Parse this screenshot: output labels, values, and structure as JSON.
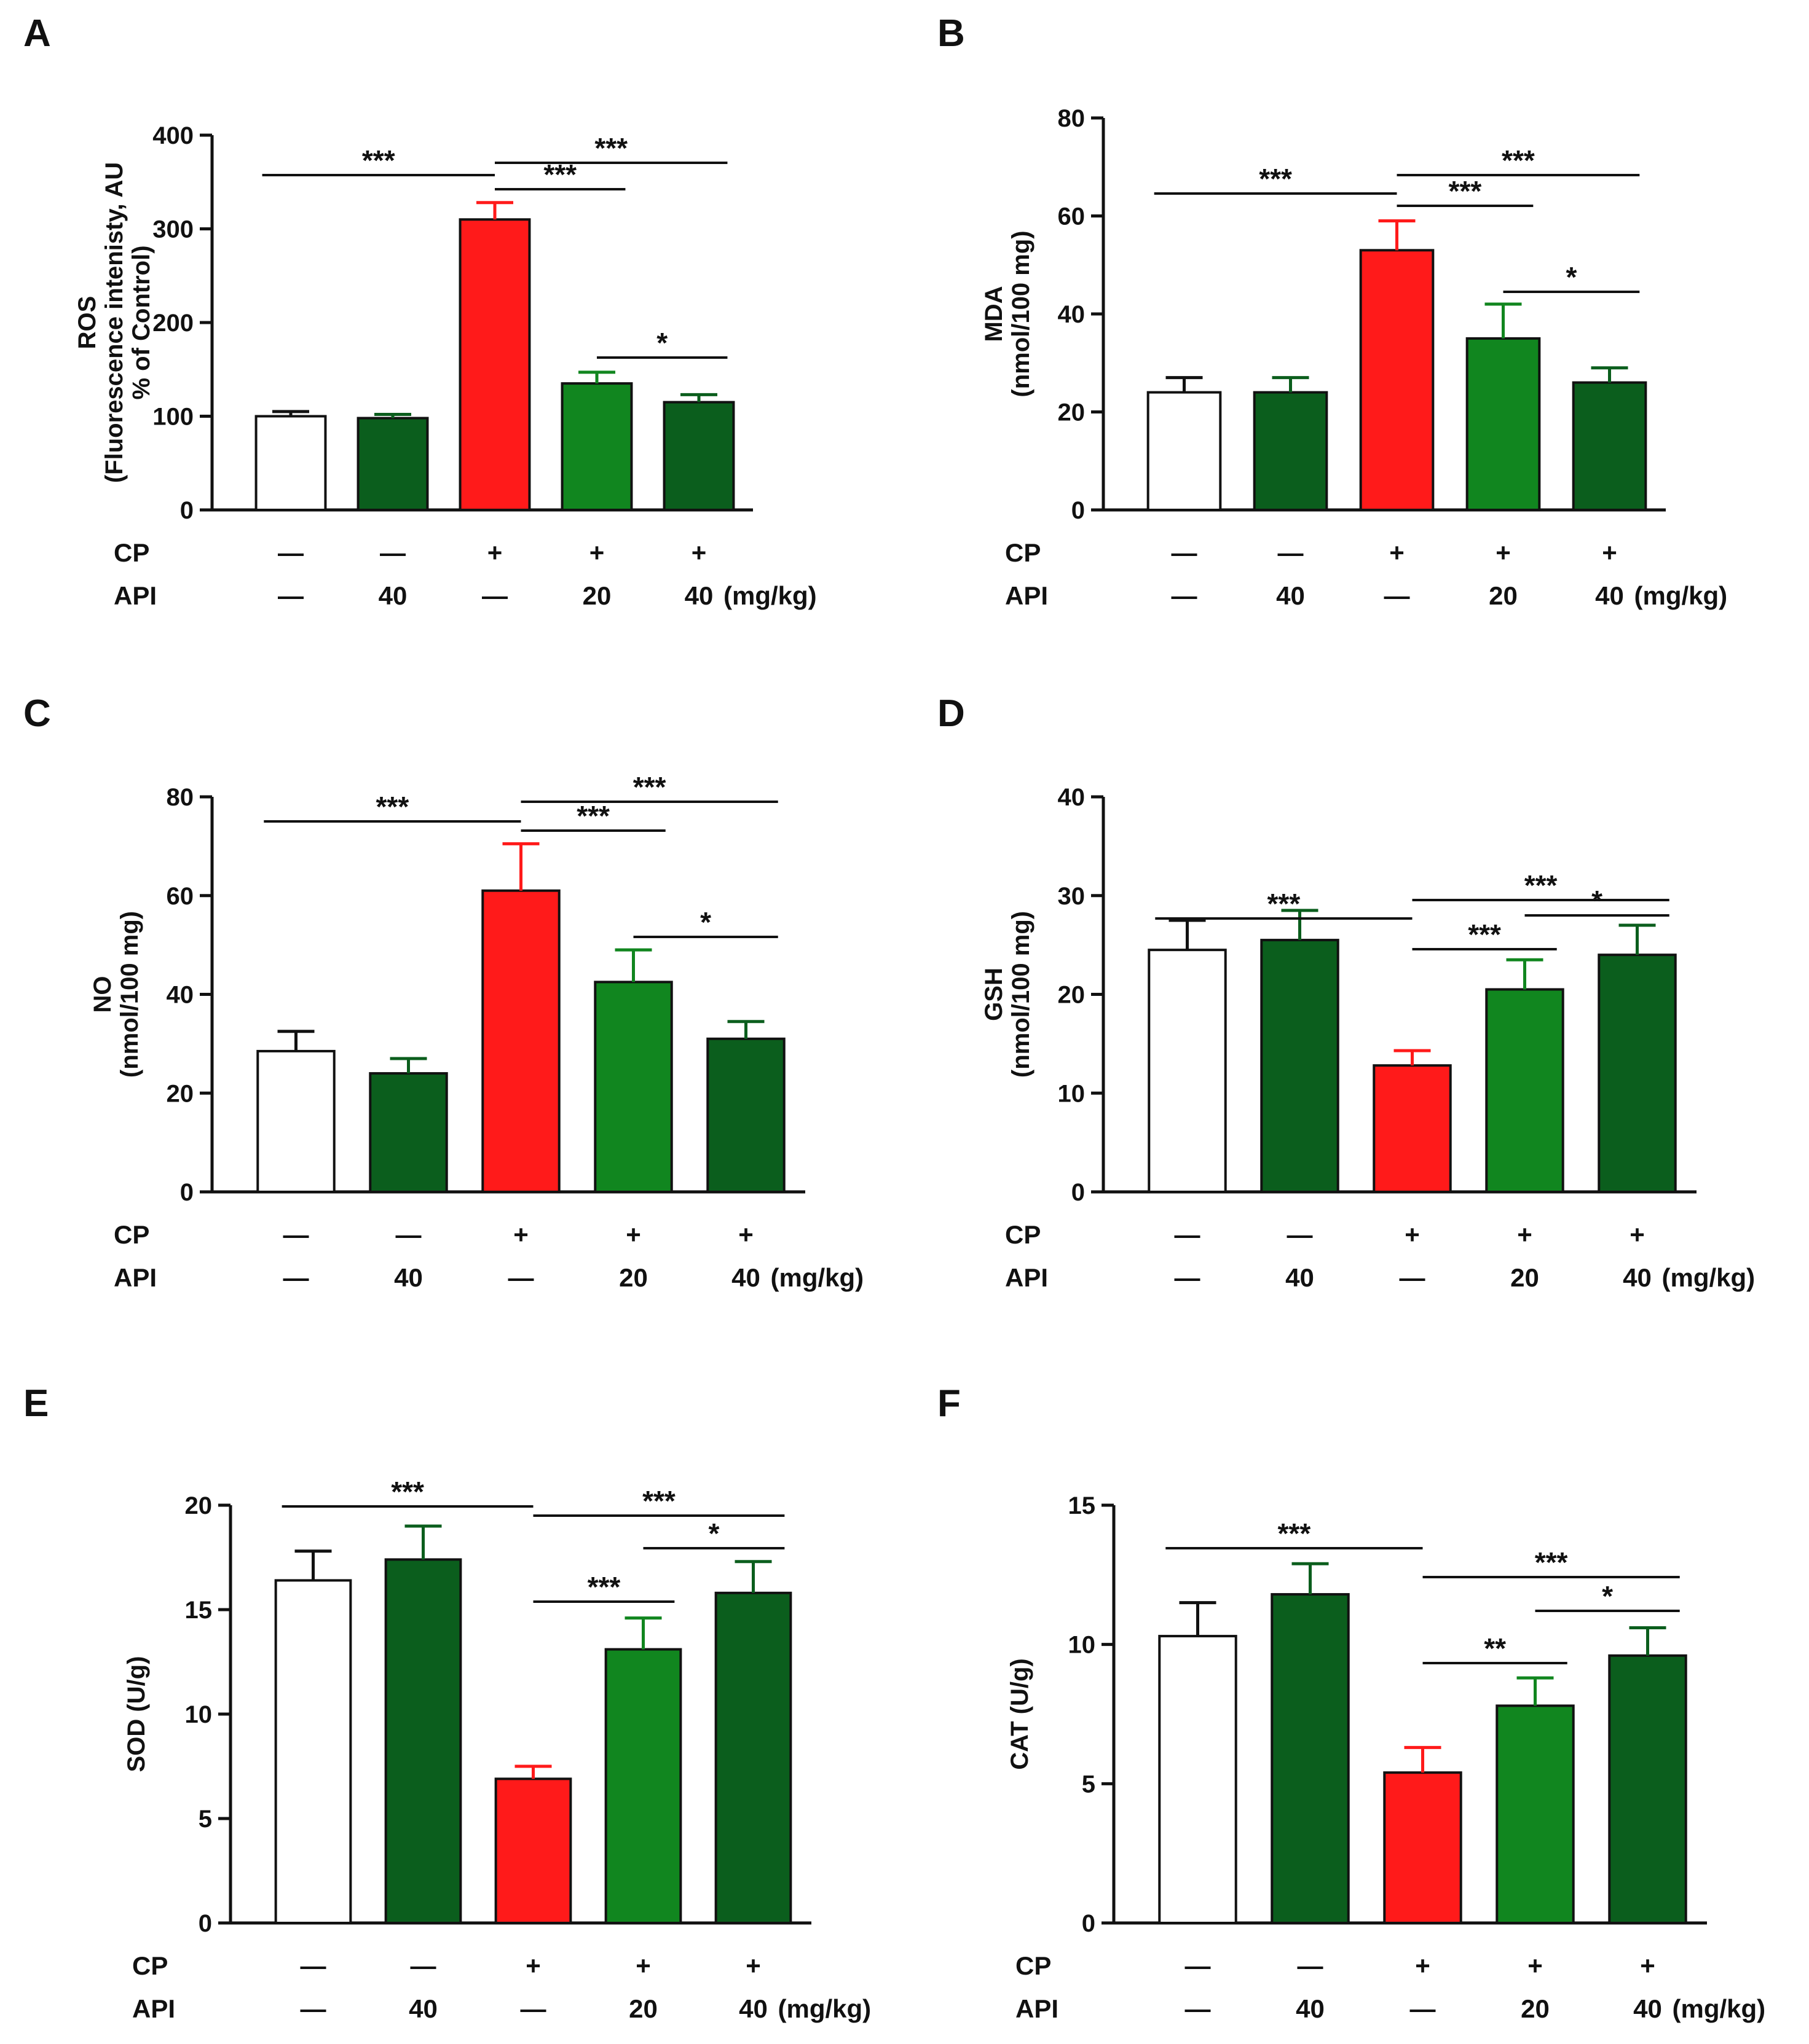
{
  "colors": {
    "control": "#ffffff",
    "api_only": "#0b5e1d",
    "cp": "#ff1a1a",
    "cp_api20": "#11861f",
    "cp_api40": "#0b5e1d",
    "stroke": "#111111"
  },
  "conditions": {
    "cp_label": "CP",
    "api_label": "API",
    "unit": "(mg/kg)",
    "cp": [
      "—",
      "—",
      "+",
      "+",
      "+"
    ],
    "api": [
      "—",
      "40",
      "—",
      "20",
      "40"
    ]
  },
  "chart_data": [
    {
      "panel": "A",
      "type": "bar",
      "ylabel": [
        "ROS",
        "(Fluorescence intenisty, AU",
        "% of Control)"
      ],
      "ylim": [
        0,
        400
      ],
      "yticks": [
        0,
        100,
        200,
        300,
        400
      ],
      "values": [
        100,
        98,
        310,
        135,
        115
      ],
      "errors": [
        5,
        4,
        18,
        12,
        8
      ],
      "significance": [
        {
          "from": 0,
          "to": 2,
          "label": "***"
        },
        {
          "from": 2,
          "to": 3,
          "label": "***"
        },
        {
          "from": 2,
          "to": 4,
          "label": "***"
        },
        {
          "from": 3,
          "to": 4,
          "label": "*"
        }
      ]
    },
    {
      "panel": "B",
      "type": "bar",
      "ylabel": [
        "MDA",
        "(nmol/100 mg)"
      ],
      "ylim": [
        0,
        80
      ],
      "yticks": [
        0,
        20,
        40,
        60,
        80
      ],
      "values": [
        24,
        24,
        53,
        35,
        26
      ],
      "errors": [
        3,
        3,
        6,
        7,
        3
      ],
      "significance": [
        {
          "from": 0,
          "to": 2,
          "label": "***"
        },
        {
          "from": 2,
          "to": 3,
          "label": "***"
        },
        {
          "from": 2,
          "to": 4,
          "label": "***"
        },
        {
          "from": 3,
          "to": 4,
          "label": "*"
        }
      ]
    },
    {
      "panel": "C",
      "type": "bar",
      "ylabel": [
        "NO",
        "(nmol/100 mg)"
      ],
      "ylim": [
        0,
        80
      ],
      "yticks": [
        0,
        20,
        40,
        60,
        80
      ],
      "values": [
        28.5,
        24,
        61,
        42.5,
        31
      ],
      "errors": [
        4,
        3,
        9.5,
        6.5,
        3.5
      ],
      "significance": [
        {
          "from": 0,
          "to": 2,
          "label": "***"
        },
        {
          "from": 2,
          "to": 3,
          "label": "***"
        },
        {
          "from": 2,
          "to": 4,
          "label": "***"
        },
        {
          "from": 3,
          "to": 4,
          "label": "*"
        }
      ]
    },
    {
      "panel": "D",
      "type": "bar",
      "ylabel": [
        "GSH",
        "(nmol/100 mg)"
      ],
      "ylim": [
        0,
        40
      ],
      "yticks": [
        0,
        10,
        20,
        30,
        40
      ],
      "values": [
        24.5,
        25.5,
        12.8,
        20.5,
        24
      ],
      "errors": [
        3,
        3,
        1.5,
        3,
        3
      ],
      "significance": [
        {
          "from": 0,
          "to": 2,
          "label": "***"
        },
        {
          "from": 2,
          "to": 3,
          "label": "***"
        },
        {
          "from": 2,
          "to": 4,
          "label": "***"
        },
        {
          "from": 3,
          "to": 4,
          "label": "*"
        }
      ]
    },
    {
      "panel": "E",
      "type": "bar",
      "ylabel": [
        "SOD (U/g)"
      ],
      "ylim": [
        0,
        20
      ],
      "yticks": [
        0,
        5,
        10,
        15,
        20
      ],
      "values": [
        16.4,
        17.4,
        6.9,
        13.1,
        15.8
      ],
      "errors": [
        1.4,
        1.6,
        0.6,
        1.5,
        1.5
      ],
      "significance": [
        {
          "from": 0,
          "to": 2,
          "label": "***"
        },
        {
          "from": 2,
          "to": 3,
          "label": "***"
        },
        {
          "from": 2,
          "to": 4,
          "label": "***"
        },
        {
          "from": 3,
          "to": 4,
          "label": "*"
        }
      ]
    },
    {
      "panel": "F",
      "type": "bar",
      "ylabel": [
        "CAT (U/g)"
      ],
      "ylim": [
        0,
        15
      ],
      "yticks": [
        0,
        5,
        10,
        15
      ],
      "values": [
        10.3,
        11.8,
        5.4,
        7.8,
        9.6
      ],
      "errors": [
        1.2,
        1.1,
        0.9,
        1.0,
        1.0
      ],
      "significance": [
        {
          "from": 0,
          "to": 2,
          "label": "***"
        },
        {
          "from": 2,
          "to": 3,
          "label": "**"
        },
        {
          "from": 2,
          "to": 4,
          "label": "***"
        },
        {
          "from": 3,
          "to": 4,
          "label": "*"
        }
      ]
    }
  ]
}
